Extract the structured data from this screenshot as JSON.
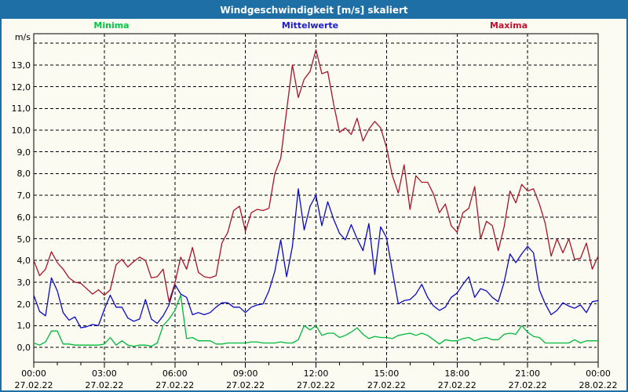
{
  "window": {
    "title": "Windgeschwindigkeit [m/s] skaliert"
  },
  "legend": {
    "minima_label": "Minima",
    "mittelwerte_label": "Mittelwerte",
    "maxima_label": "Maxima"
  },
  "y_axis": {
    "unit_label": "m/s",
    "tick_labels": [
      "0,0",
      "1,0",
      "2,0",
      "3,0",
      "4,0",
      "5,0",
      "6,0",
      "7,0",
      "8,0",
      "9,0",
      "10,0",
      "11,0",
      "12,0",
      "13,0"
    ]
  },
  "x_axis": {
    "ticks": [
      {
        "time": "00:00",
        "date": "27.02.22"
      },
      {
        "time": "03:00",
        "date": "27.02.22"
      },
      {
        "time": "06:00",
        "date": "27.02.22"
      },
      {
        "time": "09:00",
        "date": "27.02.22"
      },
      {
        "time": "12:00",
        "date": "27.02.22"
      },
      {
        "time": "15:00",
        "date": "27.02.22"
      },
      {
        "time": "18:00",
        "date": "27.02.22"
      },
      {
        "time": "21:00",
        "date": "27.02.22"
      },
      {
        "time": "00:00",
        "date": "28.02.22"
      }
    ]
  },
  "colors": {
    "titlebar": "#1d6fa5",
    "frame_border": "#1d6fa5",
    "minima": "#00b93c",
    "mittelwerte": "#0a0ac8",
    "maxima": "#aa1428",
    "grid": "#000000",
    "background": "#fbfbf2"
  },
  "chart_data": {
    "type": "line",
    "title": "Windgeschwindigkeit [m/s] skaliert",
    "ylabel": "m/s",
    "ylim": [
      0,
      14.4
    ],
    "y_gridline_step": 1.0,
    "x_hours_start": 0,
    "x_hours_end": 24,
    "x_step_hours": 0.25,
    "x_major_tick_hours": 3,
    "x_minor_tick_hours": 1,
    "grid": "dashed",
    "legend_position": "top",
    "series": [
      {
        "name": "Minima",
        "color": "#00b93c",
        "values": [
          0.2,
          0.1,
          0.25,
          0.75,
          0.75,
          0.15,
          0.15,
          0.1,
          0.1,
          0.1,
          0.1,
          0.1,
          0.15,
          0.45,
          0.1,
          0.3,
          0.1,
          0.05,
          0.1,
          0.1,
          0.05,
          0.2,
          1.0,
          1.3,
          1.7,
          2.4,
          0.4,
          0.45,
          0.3,
          0.3,
          0.3,
          0.15,
          0.15,
          0.2,
          0.2,
          0.2,
          0.2,
          0.25,
          0.25,
          0.2,
          0.2,
          0.2,
          0.25,
          0.2,
          0.2,
          0.35,
          1.0,
          0.8,
          1.0,
          0.55,
          0.65,
          0.65,
          0.45,
          0.55,
          0.7,
          0.9,
          0.6,
          0.4,
          0.5,
          0.45,
          0.45,
          0.4,
          0.55,
          0.6,
          0.65,
          0.55,
          0.65,
          0.55,
          0.35,
          0.15,
          0.35,
          0.3,
          0.3,
          0.4,
          0.45,
          0.3,
          0.4,
          0.45,
          0.35,
          0.35,
          0.6,
          0.65,
          0.6,
          1.0,
          0.7,
          0.5,
          0.45,
          0.2,
          0.2,
          0.2,
          0.2,
          0.2,
          0.35,
          0.2,
          0.3,
          0.3,
          0.3
        ]
      },
      {
        "name": "Mittelwerte",
        "color": "#0a0ac8",
        "values": [
          2.4,
          1.65,
          1.45,
          3.2,
          2.6,
          1.6,
          1.25,
          1.4,
          0.9,
          0.95,
          1.05,
          1.0,
          1.75,
          2.4,
          1.85,
          1.85,
          1.35,
          1.2,
          1.3,
          2.2,
          1.3,
          1.1,
          1.45,
          1.95,
          2.9,
          2.45,
          2.3,
          1.5,
          1.6,
          1.5,
          1.6,
          1.85,
          2.05,
          2.05,
          1.85,
          1.85,
          1.6,
          1.85,
          1.95,
          2.0,
          2.6,
          3.5,
          4.95,
          3.25,
          4.65,
          7.3,
          5.4,
          6.5,
          7.0,
          5.6,
          6.7,
          5.9,
          5.25,
          4.95,
          5.65,
          5.0,
          4.45,
          5.7,
          3.35,
          5.55,
          5.05,
          3.5,
          2.0,
          2.15,
          2.2,
          2.45,
          2.9,
          2.3,
          1.9,
          1.7,
          1.85,
          2.3,
          2.5,
          2.9,
          3.25,
          2.3,
          2.7,
          2.6,
          2.3,
          2.1,
          3.0,
          4.3,
          3.9,
          4.3,
          4.65,
          4.35,
          2.65,
          2.0,
          1.5,
          1.7,
          2.05,
          1.9,
          1.8,
          1.95,
          1.6,
          2.1,
          2.15
        ]
      },
      {
        "name": "Maxima",
        "color": "#aa1428",
        "values": [
          4.0,
          3.3,
          3.6,
          4.4,
          3.9,
          3.6,
          3.2,
          3.0,
          2.95,
          2.7,
          2.45,
          2.65,
          2.4,
          2.65,
          3.8,
          4.05,
          3.7,
          3.95,
          4.15,
          4.0,
          3.2,
          3.25,
          3.6,
          2.1,
          2.95,
          4.15,
          3.6,
          4.6,
          3.45,
          3.25,
          3.2,
          3.3,
          4.8,
          5.3,
          6.3,
          6.5,
          5.35,
          6.2,
          6.35,
          6.3,
          6.4,
          8.0,
          8.7,
          10.9,
          13.0,
          11.5,
          12.35,
          12.7,
          13.7,
          12.6,
          12.7,
          11.2,
          9.9,
          10.1,
          9.8,
          10.55,
          9.5,
          10.05,
          10.4,
          10.1,
          9.2,
          7.9,
          7.1,
          8.4,
          6.35,
          7.9,
          7.6,
          7.6,
          7.05,
          6.2,
          6.6,
          5.6,
          5.3,
          6.2,
          6.4,
          7.4,
          5.0,
          5.8,
          5.6,
          4.45,
          5.55,
          7.2,
          6.65,
          7.5,
          7.2,
          7.3,
          6.6,
          5.7,
          4.2,
          5.0,
          4.35,
          5.0,
          4.05,
          4.1,
          4.8,
          3.6,
          4.2
        ]
      }
    ]
  }
}
